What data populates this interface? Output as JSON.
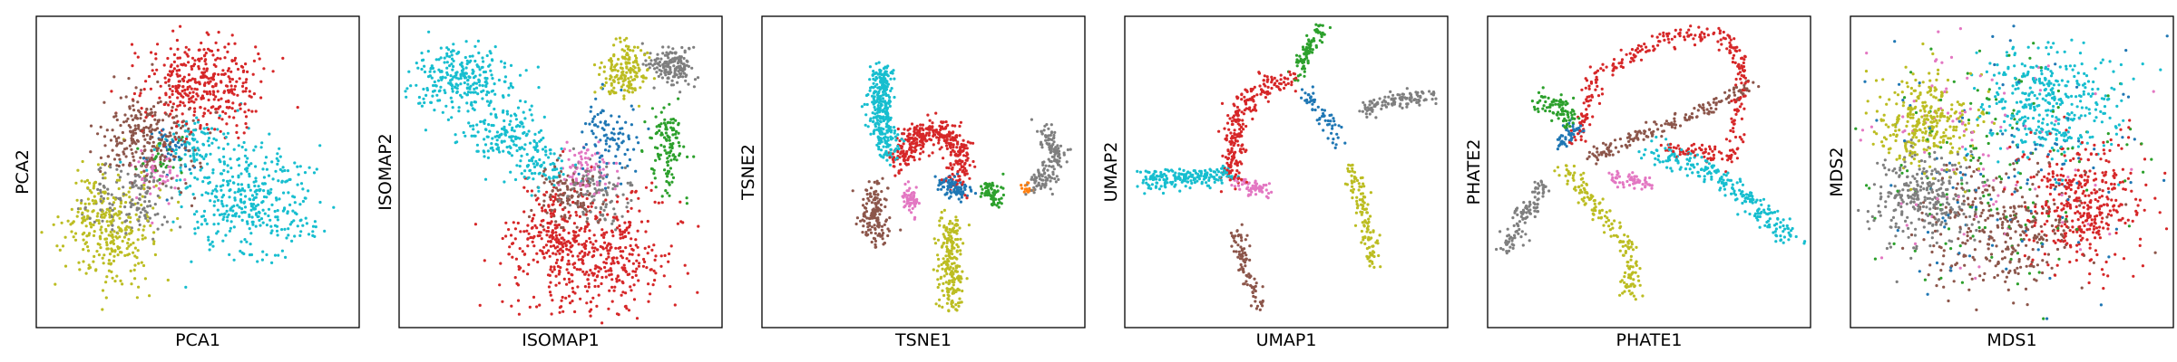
{
  "palette": {
    "blue": "#1f77b4",
    "orange": "#ff7f0e",
    "green": "#2ca02c",
    "red": "#d62728",
    "brown": "#8c564b",
    "pink": "#e377c2",
    "gray": "#7f7f7f",
    "olive": "#bcbd22",
    "cyan": "#17becf"
  },
  "chart_data": [
    {
      "type": "scatter",
      "xlabel": "PCA1",
      "ylabel": "PCA2",
      "xlim": [
        0,
        100
      ],
      "ylim": [
        0,
        100
      ],
      "ticks": false,
      "grid": false,
      "series": [
        {
          "color": "cyan",
          "clusters": [
            {
              "cx": 66,
              "cy": 40,
              "sx": 10,
              "sy": 9,
              "n": 380
            },
            {
              "cx": 51,
              "cy": 58,
              "sx": 5,
              "sy": 5,
              "n": 90
            }
          ]
        },
        {
          "color": "olive",
          "clusters": [
            {
              "cx": 22,
              "cy": 32,
              "sx": 7,
              "sy": 9,
              "n": 320
            }
          ]
        },
        {
          "color": "gray",
          "clusters": [
            {
              "cx": 30,
              "cy": 42,
              "sx": 6,
              "sy": 6,
              "n": 140
            }
          ]
        },
        {
          "color": "brown",
          "clusters": [
            {
              "cx": 34,
              "cy": 62,
              "sx": 7,
              "sy": 8,
              "n": 260
            }
          ]
        },
        {
          "color": "red",
          "clusters": [
            {
              "cx": 51,
              "cy": 78,
              "sx": 9,
              "sy": 8,
              "n": 380
            }
          ]
        },
        {
          "color": "pink",
          "clusters": [
            {
              "cx": 37,
              "cy": 50,
              "sx": 4,
              "sy": 4,
              "n": 50
            }
          ]
        },
        {
          "color": "blue",
          "clusters": [
            {
              "cx": 42,
              "cy": 57,
              "sx": 4,
              "sy": 4,
              "n": 40
            }
          ]
        },
        {
          "color": "green",
          "clusters": [
            {
              "cx": 39,
              "cy": 53,
              "sx": 4,
              "sy": 4,
              "n": 25
            }
          ]
        }
      ]
    },
    {
      "type": "scatter",
      "xlabel": "ISOMAP1",
      "ylabel": "ISOMAP2",
      "xlim": [
        0,
        100
      ],
      "ylim": [
        0,
        100
      ],
      "ticks": false,
      "grid": false,
      "series": [
        {
          "color": "cyan",
          "clusters": [
            {
              "cx": 20,
              "cy": 80,
              "sx": 8,
              "sy": 6,
              "n": 280
            },
            {
              "cx": 33,
              "cy": 62,
              "sx": 6,
              "sy": 5,
              "n": 150
            },
            {
              "cx": 44,
              "cy": 52,
              "sx": 4,
              "sy": 4,
              "n": 80
            }
          ]
        },
        {
          "color": "red",
          "clusters": [
            {
              "cx": 60,
              "cy": 24,
              "sx": 13,
              "sy": 10,
              "n": 480
            },
            {
              "cx": 46,
              "cy": 32,
              "sx": 5,
              "sy": 6,
              "n": 100
            }
          ]
        },
        {
          "color": "olive",
          "clusters": [
            {
              "cx": 70,
              "cy": 82,
              "sx": 4,
              "sy": 5,
              "n": 170
            }
          ]
        },
        {
          "color": "gray",
          "clusters": [
            {
              "cx": 84,
              "cy": 84,
              "sx": 4,
              "sy": 3,
              "n": 160
            },
            {
              "cx": 62,
              "cy": 42,
              "sx": 5,
              "sy": 5,
              "n": 100
            }
          ]
        },
        {
          "color": "green",
          "clusters": [
            {
              "cx": 83,
              "cy": 58,
              "sx": 3,
              "sy": 8,
              "n": 120
            }
          ]
        },
        {
          "color": "brown",
          "clusters": [
            {
              "cx": 52,
              "cy": 42,
              "sx": 5,
              "sy": 5,
              "n": 120
            }
          ]
        },
        {
          "color": "pink",
          "clusters": [
            {
              "cx": 58,
              "cy": 52,
              "sx": 4,
              "sy": 4,
              "n": 80
            }
          ]
        },
        {
          "color": "blue",
          "clusters": [
            {
              "cx": 65,
              "cy": 60,
              "sx": 5,
              "sy": 6,
              "n": 100
            }
          ]
        }
      ]
    },
    {
      "type": "scatter",
      "xlabel": "TSNE1",
      "ylabel": "TSNE2",
      "xlim": [
        0,
        100
      ],
      "ylim": [
        0,
        100
      ],
      "ticks": false,
      "grid": false,
      "series": [
        {
          "color": "cyan",
          "path": [
            [
              38,
              83
            ],
            [
              36,
              72
            ],
            [
              38,
              62
            ],
            [
              40,
              56
            ]
          ],
          "spread": 1.8,
          "n": 320
        },
        {
          "color": "red",
          "path": [
            [
              42,
              52
            ],
            [
              48,
              62
            ],
            [
              57,
              63
            ],
            [
              62,
              56
            ],
            [
              60,
              48
            ]
          ],
          "spread": 2.2,
          "n": 380
        },
        {
          "color": "brown",
          "path": [
            [
              35,
              45
            ],
            [
              34,
              36
            ],
            [
              36,
              28
            ]
          ],
          "spread": 2.0,
          "n": 150
        },
        {
          "color": "pink",
          "path": [
            [
              45,
              44
            ],
            [
              47,
              38
            ]
          ],
          "spread": 1.3,
          "n": 60
        },
        {
          "color": "olive",
          "path": [
            [
              58,
              36
            ],
            [
              58,
              24
            ],
            [
              59,
              6
            ]
          ],
          "spread": 2.0,
          "n": 220
        },
        {
          "color": "green",
          "path": [
            [
              69,
              46
            ],
            [
              73,
              40
            ]
          ],
          "spread": 1.3,
          "n": 70
        },
        {
          "color": "blue",
          "path": [
            [
              56,
              46
            ],
            [
              63,
              44
            ]
          ],
          "spread": 1.5,
          "n": 90
        },
        {
          "color": "gray",
          "path": [
            [
              87,
              63
            ],
            [
              91,
              57
            ],
            [
              88,
              48
            ],
            [
              84,
              46
            ]
          ],
          "spread": 1.8,
          "n": 160
        },
        {
          "color": "orange",
          "path": [
            [
              81,
              45
            ],
            [
              83,
              44
            ]
          ],
          "spread": 0.8,
          "n": 15
        }
      ]
    },
    {
      "type": "scatter",
      "xlabel": "UMAP1",
      "ylabel": "UMAP2",
      "xlim": [
        0,
        100
      ],
      "ylim": [
        0,
        100
      ],
      "ticks": false,
      "grid": false,
      "series": [
        {
          "color": "cyan",
          "path": [
            [
              5,
              48
            ],
            [
              20,
              48
            ],
            [
              32,
              49
            ]
          ],
          "spread": 1.6,
          "n": 190
        },
        {
          "color": "pink",
          "path": [
            [
              33,
              47
            ],
            [
              45,
              44
            ]
          ],
          "spread": 1.2,
          "n": 60
        },
        {
          "color": "red",
          "path": [
            [
              33,
              48
            ],
            [
              35,
              70
            ],
            [
              44,
              78
            ],
            [
              53,
              80
            ]
          ],
          "spread": 1.8,
          "n": 250
        },
        {
          "color": "green",
          "path": [
            [
              53,
              81
            ],
            [
              58,
              92
            ],
            [
              61,
              96
            ]
          ],
          "spread": 1.1,
          "n": 90
        },
        {
          "color": "brown",
          "path": [
            [
              34,
              32
            ],
            [
              38,
              17
            ],
            [
              42,
              6
            ]
          ],
          "spread": 1.2,
          "n": 90
        },
        {
          "color": "blue",
          "path": [
            [
              56,
              75
            ],
            [
              67,
              60
            ]
          ],
          "spread": 1.3,
          "n": 60
        },
        {
          "color": "olive",
          "path": [
            [
              70,
              52
            ],
            [
              74,
              38
            ],
            [
              77,
              20
            ]
          ],
          "spread": 1.3,
          "n": 120
        },
        {
          "color": "gray",
          "path": [
            [
              74,
              70
            ],
            [
              82,
              73
            ],
            [
              95,
              74
            ]
          ],
          "spread": 1.3,
          "n": 120
        }
      ]
    },
    {
      "type": "scatter",
      "xlabel": "PHATE1",
      "ylabel": "PHATE2",
      "xlim": [
        0,
        100
      ],
      "ylim": [
        0,
        100
      ],
      "ticks": false,
      "grid": false,
      "series": [
        {
          "color": "red",
          "path": [
            [
              28,
              60
            ],
            [
              34,
              82
            ],
            [
              55,
              93
            ],
            [
              72,
              95
            ],
            [
              79,
              84
            ],
            [
              76,
              55
            ],
            [
              54,
              58
            ]
          ],
          "spread": 1.4,
          "n": 340
        },
        {
          "color": "brown",
          "path": [
            [
              32,
              55
            ],
            [
              58,
              66
            ],
            [
              83,
              78
            ]
          ],
          "spread": 1.3,
          "n": 170
        },
        {
          "color": "cyan",
          "path": [
            [
              50,
              57
            ],
            [
              70,
              50
            ],
            [
              86,
              36
            ],
            [
              95,
              28
            ]
          ],
          "spread": 2.0,
          "n": 240
        },
        {
          "color": "olive",
          "path": [
            [
              24,
              52
            ],
            [
              34,
              38
            ],
            [
              44,
              26
            ],
            [
              44,
              10
            ]
          ],
          "spread": 1.6,
          "n": 170
        },
        {
          "color": "gray",
          "path": [
            [
              6,
              25
            ],
            [
              12,
              38
            ],
            [
              18,
              46
            ]
          ],
          "spread": 1.6,
          "n": 110
        },
        {
          "color": "green",
          "path": [
            [
              16,
              72
            ],
            [
              22,
              72
            ],
            [
              26,
              65
            ]
          ],
          "spread": 1.6,
          "n": 90
        },
        {
          "color": "pink",
          "path": [
            [
              38,
              48
            ],
            [
              50,
              46
            ]
          ],
          "spread": 1.2,
          "n": 60
        },
        {
          "color": "blue",
          "path": [
            [
              22,
              58
            ],
            [
              28,
              66
            ]
          ],
          "spread": 1.2,
          "n": 50
        }
      ]
    },
    {
      "type": "scatter",
      "xlabel": "MDS1",
      "ylabel": "MDS2",
      "xlim": [
        0,
        100
      ],
      "ylim": [
        0,
        100
      ],
      "ticks": false,
      "grid": false,
      "series": [
        {
          "color": "cyan",
          "clusters": [
            {
              "cx": 62,
              "cy": 72,
              "sx": 11,
              "sy": 9,
              "n": 380
            }
          ]
        },
        {
          "color": "red",
          "clusters": [
            {
              "cx": 72,
              "cy": 40,
              "sx": 9,
              "sy": 10,
              "n": 380
            }
          ]
        },
        {
          "color": "olive",
          "clusters": [
            {
              "cx": 24,
              "cy": 66,
              "sx": 8,
              "sy": 8,
              "n": 320
            }
          ]
        },
        {
          "color": "gray",
          "clusters": [
            {
              "cx": 22,
              "cy": 42,
              "sx": 8,
              "sy": 7,
              "n": 300
            }
          ]
        },
        {
          "color": "brown",
          "clusters": [
            {
              "cx": 46,
              "cy": 32,
              "sx": 12,
              "sy": 10,
              "n": 320
            }
          ]
        },
        {
          "color": "green",
          "clusters": [
            {
              "cx": 46,
              "cy": 50,
              "sx": 22,
              "sy": 20,
              "n": 150
            }
          ]
        },
        {
          "color": "blue",
          "clusters": [
            {
              "cx": 50,
              "cy": 52,
              "sx": 20,
              "sy": 20,
              "n": 120
            }
          ]
        },
        {
          "color": "pink",
          "clusters": [
            {
              "cx": 42,
              "cy": 55,
              "sx": 20,
              "sy": 18,
              "n": 100
            }
          ]
        }
      ]
    }
  ]
}
